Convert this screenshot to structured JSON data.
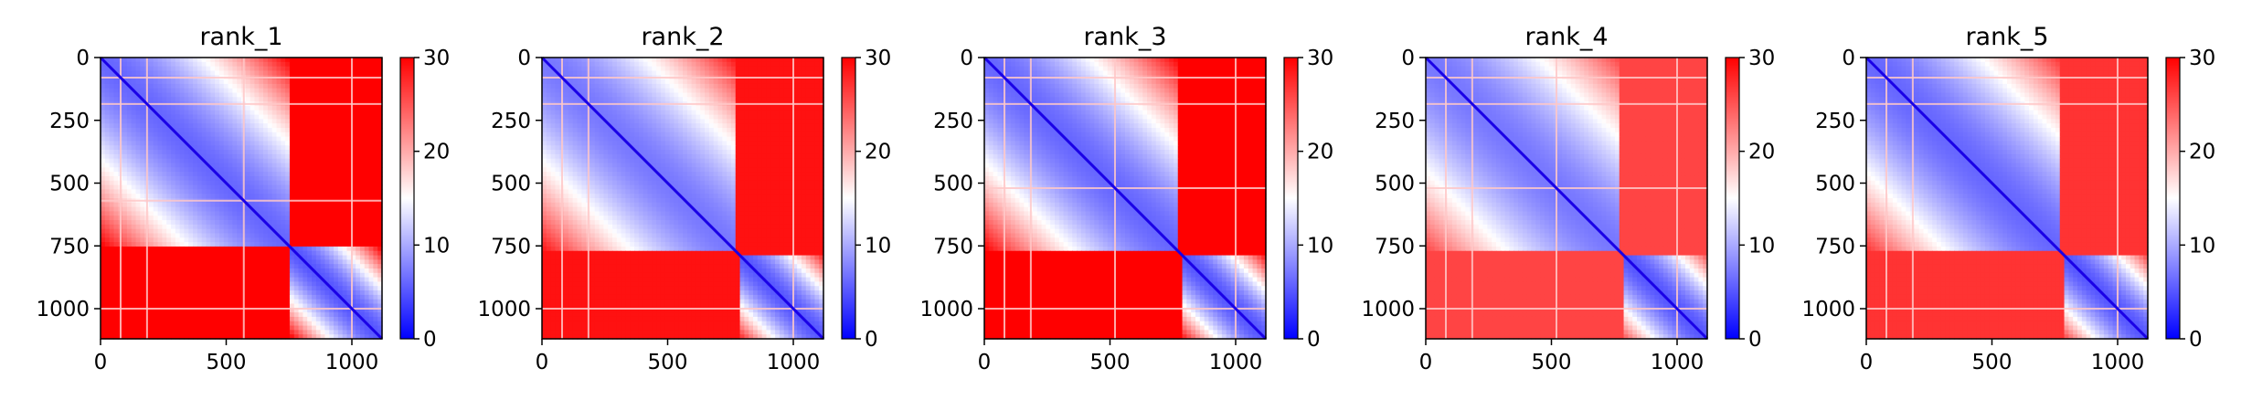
{
  "chart_data": [
    {
      "type": "heatmap",
      "title": "rank_1",
      "matrix_size": 1120,
      "xlim": [
        0,
        1120
      ],
      "ylim": [
        1120,
        0
      ],
      "xticks": [
        0,
        500,
        1000
      ],
      "yticks": [
        0,
        250,
        500,
        750,
        1000
      ],
      "colorbar": {
        "range": [
          0,
          30
        ],
        "ticks": [
          0,
          10,
          20,
          30
        ],
        "colors": [
          "#0000ff",
          "#ffffff",
          "#ff0000"
        ]
      },
      "blocks": [
        {
          "range": [
            0,
            750
          ],
          "intra": 6
        },
        {
          "range": [
            760,
            1120
          ],
          "intra": 5
        }
      ],
      "inter_block_value": 30,
      "bands": [
        80,
        185,
        570,
        1000
      ]
    },
    {
      "type": "heatmap",
      "title": "rank_2",
      "matrix_size": 1120,
      "xlim": [
        0,
        1120
      ],
      "ylim": [
        1120,
        0
      ],
      "xticks": [
        0,
        500,
        1000
      ],
      "yticks": [
        0,
        250,
        500,
        750,
        1000
      ],
      "colorbar": {
        "range": [
          0,
          30
        ],
        "ticks": [
          0,
          10,
          20,
          30
        ],
        "colors": [
          "#0000ff",
          "#ffffff",
          "#ff0000"
        ]
      },
      "blocks": [
        {
          "range": [
            0,
            770
          ],
          "intra": 7
        },
        {
          "range": [
            780,
            1120
          ],
          "intra": 5
        }
      ],
      "inter_block_value": 29,
      "bands": [
        80,
        185,
        1000
      ]
    },
    {
      "type": "heatmap",
      "title": "rank_3",
      "matrix_size": 1120,
      "xlim": [
        0,
        1120
      ],
      "ylim": [
        1120,
        0
      ],
      "xticks": [
        0,
        500,
        1000
      ],
      "yticks": [
        0,
        250,
        500,
        750,
        1000
      ],
      "colorbar": {
        "range": [
          0,
          30
        ],
        "ticks": [
          0,
          10,
          20,
          30
        ],
        "colors": [
          "#0000ff",
          "#ffffff",
          "#ff0000"
        ]
      },
      "blocks": [
        {
          "range": [
            0,
            770
          ],
          "intra": 6
        },
        {
          "range": [
            780,
            1120
          ],
          "intra": 5
        }
      ],
      "inter_block_value": 30,
      "bands": [
        80,
        185,
        520,
        1000
      ]
    },
    {
      "type": "heatmap",
      "title": "rank_4",
      "matrix_size": 1120,
      "xlim": [
        0,
        1120
      ],
      "ylim": [
        1120,
        0
      ],
      "xticks": [
        0,
        500,
        1000
      ],
      "yticks": [
        0,
        250,
        500,
        750,
        1000
      ],
      "colorbar": {
        "range": [
          0,
          30
        ],
        "ticks": [
          0,
          10,
          20,
          30
        ],
        "colors": [
          "#0000ff",
          "#ffffff",
          "#ff0000"
        ]
      },
      "blocks": [
        {
          "range": [
            0,
            770
          ],
          "intra": 7
        },
        {
          "range": [
            780,
            1120
          ],
          "intra": 5
        }
      ],
      "inter_block_value": 26,
      "bands": [
        80,
        185,
        520,
        1000
      ]
    },
    {
      "type": "heatmap",
      "title": "rank_5",
      "matrix_size": 1120,
      "xlim": [
        0,
        1120
      ],
      "ylim": [
        1120,
        0
      ],
      "xticks": [
        0,
        500,
        1000
      ],
      "yticks": [
        0,
        250,
        500,
        750,
        1000
      ],
      "colorbar": {
        "range": [
          0,
          30
        ],
        "ticks": [
          0,
          10,
          20,
          30
        ],
        "colors": [
          "#0000ff",
          "#ffffff",
          "#ff0000"
        ]
      },
      "blocks": [
        {
          "range": [
            0,
            770
          ],
          "intra": 6
        },
        {
          "range": [
            780,
            1120
          ],
          "intra": 5
        }
      ],
      "inter_block_value": 27,
      "bands": [
        80,
        185,
        1000
      ]
    }
  ]
}
